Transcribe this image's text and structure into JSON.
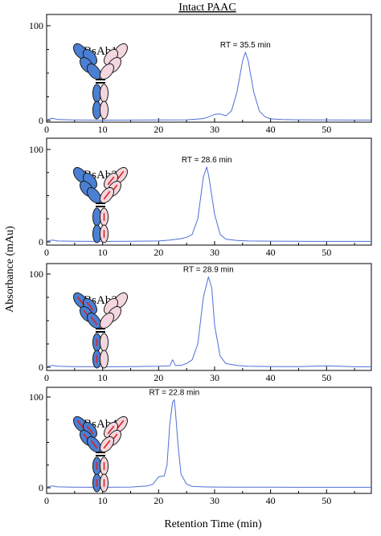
{
  "figure": {
    "title": "Intact PAAC",
    "xlabel": "Retention Time (min)",
    "ylabel": "Absorbance (mAu)"
  },
  "colors": {
    "trace": "#4f6fd6",
    "heavy_blue": "#4a7fd4",
    "light_pink": "#f3d6de",
    "mutation": "#e02020",
    "axis": "#000000"
  },
  "chart_data": [
    {
      "type": "line",
      "name": "BsAb1",
      "annotation": "RT = 35.5 min",
      "peak_rt": 35.5,
      "xlim": [
        0,
        58
      ],
      "ylim": [
        0,
        100
      ],
      "xticks": [
        0,
        10,
        20,
        30,
        40,
        50
      ],
      "yticks": [
        0,
        100
      ],
      "mutations": {
        "left_arms": false,
        "right_arms": false,
        "stem_blue": false,
        "stem_pink": false
      },
      "trace": {
        "x": [
          0,
          1,
          2,
          5,
          10,
          15,
          20,
          25,
          28,
          29,
          30,
          31,
          32,
          33,
          34,
          35,
          35.5,
          36,
          37,
          38,
          39,
          40,
          42,
          45,
          50,
          55,
          58
        ],
        "y": [
          0.5,
          2.5,
          1,
          0.6,
          0.4,
          0.5,
          0.6,
          0.8,
          2,
          4,
          6.5,
          7,
          5,
          10,
          30,
          63,
          72,
          63,
          30,
          10,
          4,
          1.8,
          1,
          0.8,
          0.6,
          0.5,
          0.5
        ]
      }
    },
    {
      "type": "line",
      "name": "BsAb2",
      "annotation": "RT = 28.6 min",
      "peak_rt": 28.6,
      "xlim": [
        0,
        58
      ],
      "ylim": [
        0,
        100
      ],
      "xticks": [
        0,
        10,
        20,
        30,
        40,
        50
      ],
      "yticks": [
        0,
        100
      ],
      "mutations": {
        "left_arms": false,
        "right_arms": true,
        "stem_blue": false,
        "stem_pink": true
      },
      "trace": {
        "x": [
          0,
          1,
          2,
          5,
          10,
          15,
          20,
          22,
          24,
          25,
          26,
          27,
          28,
          28.6,
          29,
          30,
          31,
          32,
          34,
          36,
          40,
          45,
          50,
          55,
          58
        ],
        "y": [
          0.5,
          2,
          1,
          0.6,
          0.5,
          0.7,
          1,
          2,
          3.5,
          5,
          8,
          25,
          70,
          81,
          70,
          30,
          8,
          3,
          1.5,
          1,
          0.8,
          0.6,
          0.5,
          0.5,
          0.5
        ]
      }
    },
    {
      "type": "line",
      "name": "BsAb3",
      "annotation": "RT = 28.9 min",
      "peak_rt": 28.9,
      "xlim": [
        0,
        58
      ],
      "ylim": [
        0,
        100
      ],
      "xticks": [
        0,
        10,
        20,
        30,
        40,
        50
      ],
      "yticks": [
        0,
        100
      ],
      "mutations": {
        "left_arms": true,
        "right_arms": false,
        "stem_blue": true,
        "stem_pink": false
      },
      "trace": {
        "x": [
          0,
          1,
          2,
          5,
          10,
          15,
          20,
          22,
          22.5,
          23,
          24,
          25,
          26,
          27,
          28,
          28.9,
          29.5,
          30,
          31,
          32,
          34,
          36,
          40,
          45,
          50,
          55,
          58
        ],
        "y": [
          0.5,
          2,
          1,
          0.6,
          0.5,
          0.7,
          1,
          1.5,
          8,
          2,
          2,
          4,
          8,
          25,
          75,
          97,
          85,
          45,
          12,
          4,
          2,
          1,
          0.8,
          0.6,
          1.5,
          0.5,
          0.5
        ]
      }
    },
    {
      "type": "line",
      "name": "BsAb4",
      "annotation": "RT = 22.8 min",
      "peak_rt": 22.8,
      "xlim": [
        0,
        58
      ],
      "ylim": [
        0,
        100
      ],
      "xticks": [
        0,
        10,
        20,
        30,
        40,
        50
      ],
      "yticks": [
        0,
        100
      ],
      "mutations": {
        "left_arms": true,
        "right_arms": true,
        "stem_blue": true,
        "stem_pink": true
      },
      "trace": {
        "x": [
          0,
          1,
          2,
          5,
          10,
          15,
          18,
          19,
          20,
          21,
          21.5,
          22,
          22.5,
          22.8,
          23,
          23.5,
          24,
          25,
          26,
          28,
          30,
          35,
          40,
          45,
          50,
          55,
          58
        ],
        "y": [
          0.5,
          2,
          1,
          0.6,
          0.5,
          0.8,
          2,
          4,
          12,
          13,
          25,
          70,
          94,
          97,
          85,
          45,
          15,
          4,
          1.5,
          1,
          0.8,
          0.6,
          0.6,
          0.5,
          0.5,
          0.5,
          0.5
        ]
      }
    }
  ]
}
